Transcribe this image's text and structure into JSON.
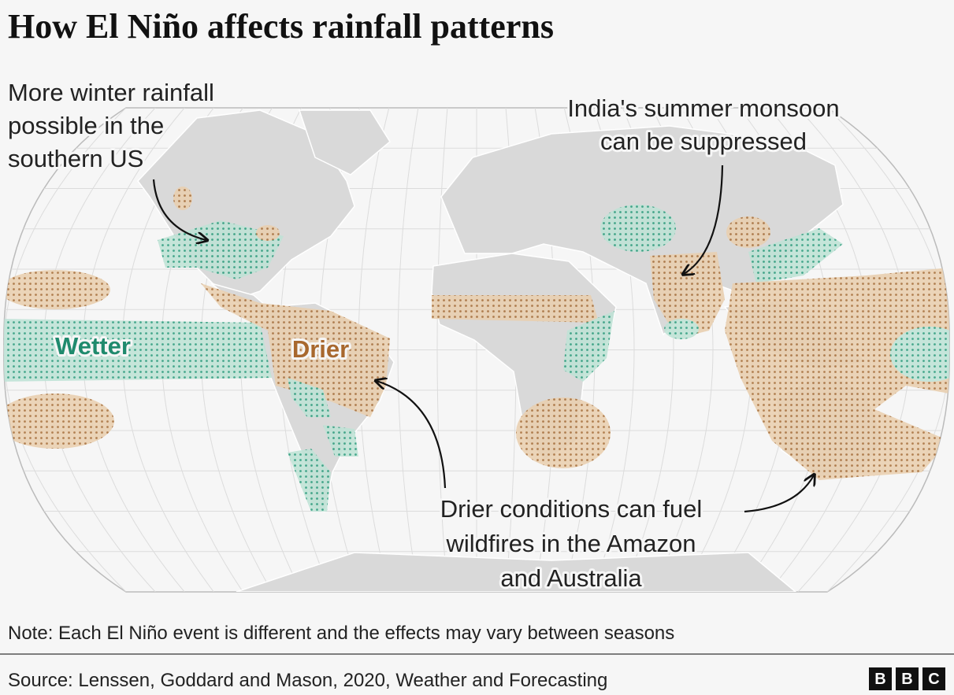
{
  "title": "How El Niño affects rainfall patterns",
  "annotations": [
    {
      "lines": [
        "More winter rainfall",
        "possible in the",
        "southern US"
      ]
    },
    {
      "lines": [
        "India's summer monsoon",
        "can be suppressed"
      ]
    },
    {
      "lines": [
        "Drier conditions can fuel",
        "wildfires in the Amazon",
        "and Australia"
      ]
    }
  ],
  "labels": {
    "wetter": "Wetter",
    "drier": "Drier"
  },
  "note": "Note: Each El Niño event is different and the effects may vary between seasons",
  "source": "Source: Lenssen, Goddard and Mason, 2020, Weather and Forecasting",
  "logo": [
    "B",
    "B",
    "C"
  ]
}
